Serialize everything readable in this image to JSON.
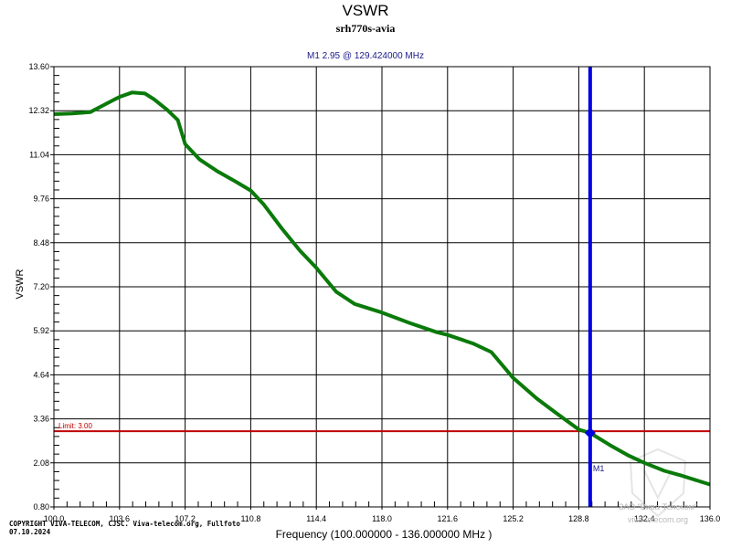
{
  "header": {
    "title": "VSWR",
    "subtitle": "srh770s-avia",
    "marker_readout": "M1  2.95 @ 129.424000 MHz"
  },
  "axes": {
    "ylabel": "VSWR",
    "xlabel": "Frequency (100.000000 - 136.000000 MHz )"
  },
  "limit": {
    "label": "Limit: 3.00",
    "value": 3.0,
    "color": "#c00000"
  },
  "marker": {
    "name": "M1",
    "freq": 129.424,
    "value": 2.95,
    "color": "#0000e0"
  },
  "footer": {
    "copyright": "COPYRIGHT VIVA-TELECOM, CJSC. Viva-telecom.org, Fullfoto",
    "date": "07.10.2024",
    "watermark_line1": "ЗАО \"Вива-Телеком\"",
    "watermark_line2": "viva-telecom.org"
  },
  "colors": {
    "trace": "#0a7a0a",
    "grid": "#000000",
    "limit": "#c00000",
    "marker": "#0000e0"
  },
  "chart_data": {
    "type": "line",
    "title": "VSWR",
    "subtitle": "srh770s-avia",
    "xlabel": "Frequency (100.000000 - 136.000000 MHz )",
    "ylabel": "VSWR",
    "xlim": [
      100.0,
      136.0
    ],
    "ylim": [
      0.8,
      13.6
    ],
    "grid": true,
    "x_ticks": [
      "100.0",
      "103.6",
      "107.2",
      "110.8",
      "114.4",
      "118.0",
      "121.6",
      "125.2",
      "128.8",
      "132.4",
      "136.0"
    ],
    "y_ticks": [
      "0.80",
      "2.08",
      "3.36",
      "4.64",
      "5.92",
      "7.20",
      "8.48",
      "9.76",
      "11.04",
      "12.32",
      "13.60"
    ],
    "series": [
      {
        "name": "VSWR",
        "x": [
          100.0,
          101.0,
          102.0,
          102.8,
          103.6,
          104.3,
          105.0,
          105.5,
          106.2,
          106.8,
          107.2,
          108.0,
          109.0,
          110.0,
          110.8,
          111.5,
          112.5,
          113.5,
          114.4,
          115.5,
          116.5,
          118.0,
          119.5,
          121.0,
          121.6,
          123.0,
          124.0,
          125.2,
          126.5,
          127.5,
          128.8,
          129.424,
          130.5,
          131.5,
          132.4,
          133.5,
          134.5,
          136.0
        ],
        "y": [
          12.22,
          12.24,
          12.28,
          12.5,
          12.72,
          12.85,
          12.82,
          12.65,
          12.35,
          12.05,
          11.35,
          10.9,
          10.55,
          10.25,
          10.0,
          9.6,
          8.9,
          8.25,
          7.75,
          7.05,
          6.7,
          6.45,
          6.15,
          5.88,
          5.8,
          5.55,
          5.3,
          4.55,
          3.95,
          3.55,
          3.05,
          2.95,
          2.6,
          2.3,
          2.08,
          1.85,
          1.7,
          1.45
        ]
      }
    ],
    "annotations": [
      {
        "type": "hline",
        "y": 3.0,
        "label": "Limit: 3.00"
      },
      {
        "type": "vline",
        "x": 129.424,
        "label": "M1",
        "value": 2.95
      }
    ]
  }
}
